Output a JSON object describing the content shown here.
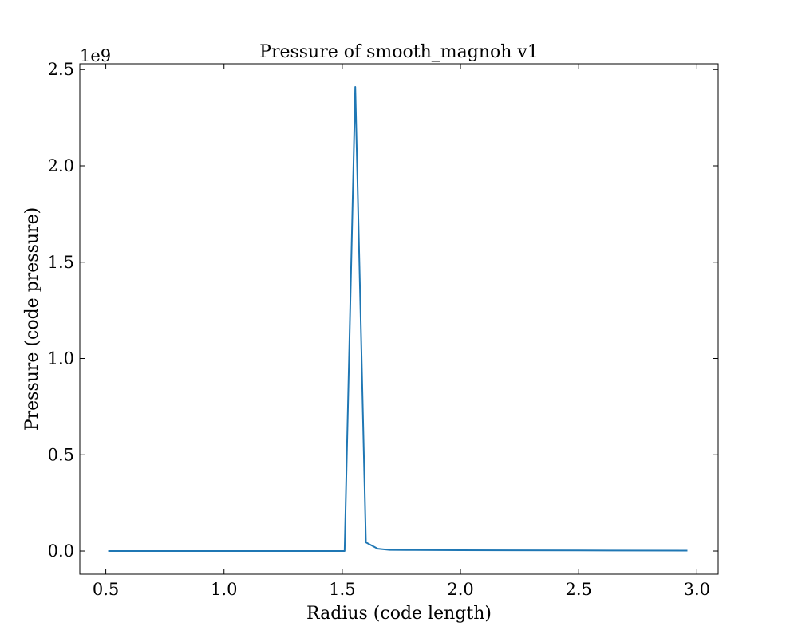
{
  "chart_data": {
    "type": "line",
    "title": "Pressure of smooth_magnoh v1",
    "xlabel": "Radius  (code length)",
    "ylabel": "Pressure  (code pressure)",
    "y_offset_label": "1e9",
    "y_scale_factor": 1000000000,
    "xlim": [
      0.39,
      3.09
    ],
    "ylim": [
      -0.12,
      2.53
    ],
    "xticks": [
      0.5,
      1.0,
      1.5,
      2.0,
      2.5,
      3.0
    ],
    "xtick_labels": [
      "0.5",
      "1.0",
      "1.5",
      "2.0",
      "2.5",
      "3.0"
    ],
    "yticks": [
      0.0,
      0.5,
      1.0,
      1.5,
      2.0,
      2.5
    ],
    "ytick_labels": [
      "0.0",
      "0.5",
      "1.0",
      "1.5",
      "2.0",
      "2.5"
    ],
    "grid": false,
    "legend": "none",
    "line_color": "#1f77b4",
    "series": [
      {
        "x": [
          0.51,
          0.8,
          1.0,
          1.2,
          1.4,
          1.51,
          1.555,
          1.6,
          1.65,
          1.7,
          1.8,
          2.0,
          2.5,
          2.96
        ],
        "y": [
          0.0,
          0.0,
          0.0,
          0.0,
          0.0,
          0.0,
          2.41,
          0.045,
          0.012,
          0.006,
          0.005,
          0.004,
          0.003,
          0.002
        ]
      }
    ]
  }
}
